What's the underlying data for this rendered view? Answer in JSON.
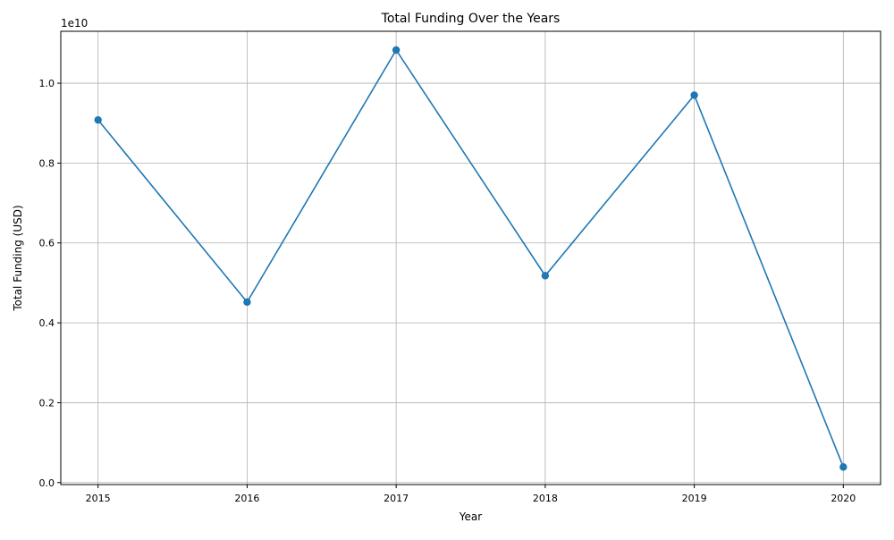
{
  "chart_data": {
    "type": "line",
    "title": "Total Funding Over the Years",
    "xlabel": "Year",
    "ylabel": "Total Funding (USD)",
    "offset_label": "1e10",
    "x": [
      2015,
      2016,
      2017,
      2018,
      2019,
      2020
    ],
    "x_tick_labels": [
      "2015",
      "2016",
      "2017",
      "2018",
      "2019",
      "2020"
    ],
    "series": [
      {
        "values": [
          9080000000,
          4520000000,
          10830000000,
          5180000000,
          9700000000,
          390000000
        ],
        "color": "#1f77b4",
        "marker": "circle"
      }
    ],
    "y_ticks": [
      0,
      2000000000,
      4000000000,
      6000000000,
      8000000000,
      10000000000
    ],
    "y_tick_labels": [
      "0.0",
      "0.2",
      "0.4",
      "0.6",
      "0.8",
      "1.0"
    ],
    "xlim": [
      2014.75,
      2020.25
    ],
    "ylim": [
      -50000000,
      11300000000
    ],
    "grid": true
  }
}
